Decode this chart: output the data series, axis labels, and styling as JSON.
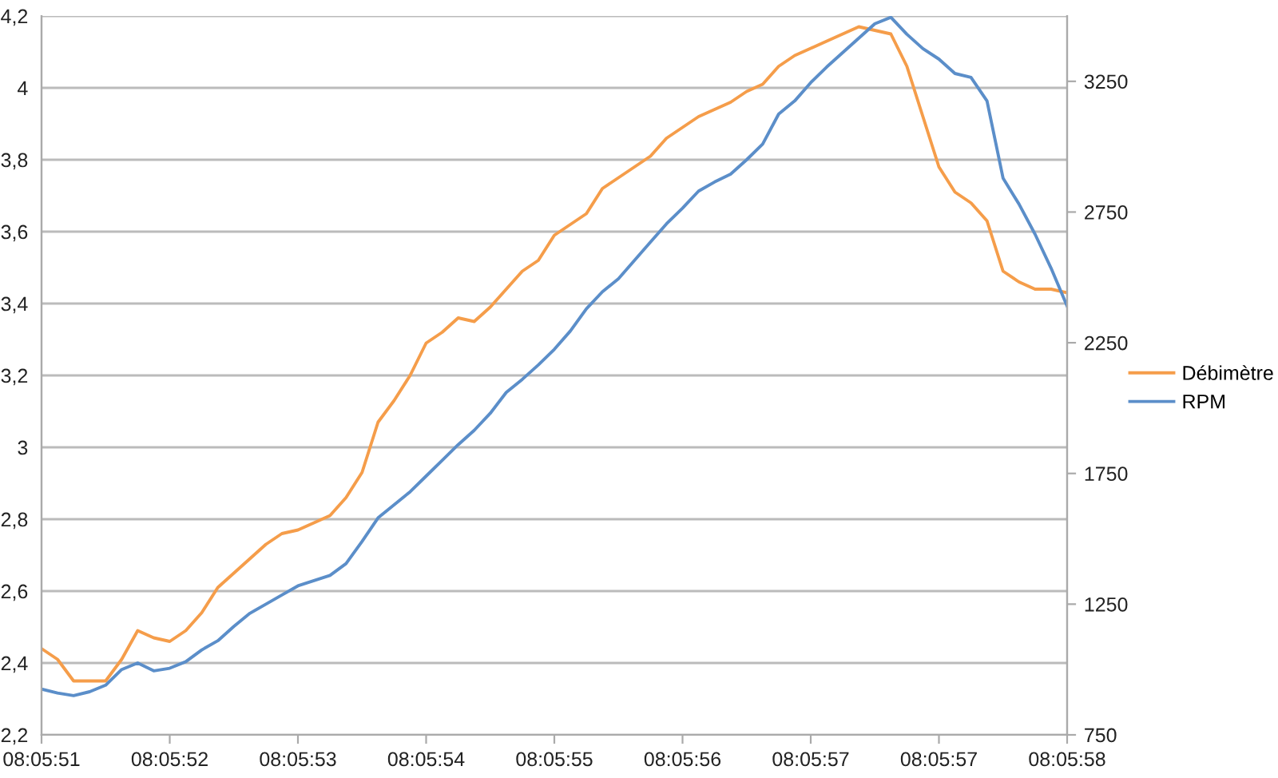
{
  "chart_data": {
    "type": "line",
    "categories": [
      "08:05:51",
      null,
      null,
      null,
      null,
      null,
      null,
      null,
      "08:05:52",
      null,
      null,
      null,
      null,
      null,
      null,
      null,
      "08:05:53",
      null,
      null,
      null,
      null,
      null,
      null,
      null,
      "08:05:54",
      null,
      null,
      null,
      null,
      null,
      null,
      null,
      "08:05:55",
      null,
      null,
      null,
      null,
      null,
      null,
      null,
      "08:05:56",
      null,
      null,
      null,
      null,
      null,
      null,
      null,
      "08:05:57",
      null,
      null,
      null,
      null,
      null,
      null,
      null,
      "08:05:57",
      null,
      null,
      null,
      null,
      null,
      null,
      null,
      "08:05:58"
    ],
    "series": [
      {
        "name": "Débimètre",
        "color": "#f59d4a",
        "values": [
          2.44,
          2.41,
          2.35,
          2.35,
          2.35,
          2.41,
          2.49,
          2.47,
          2.46,
          2.49,
          2.54,
          2.61,
          2.65,
          2.69,
          2.73,
          2.76,
          2.77,
          2.79,
          2.81,
          2.86,
          2.93,
          3.07,
          3.13,
          3.2,
          3.29,
          3.32,
          3.36,
          3.35,
          3.39,
          3.44,
          3.49,
          3.52,
          3.59,
          3.62,
          3.65,
          3.72,
          3.75,
          3.78,
          3.81,
          3.86,
          3.89,
          3.92,
          3.94,
          3.96,
          3.99,
          4.01,
          4.06,
          4.09,
          4.11,
          4.13,
          4.15,
          4.17,
          4.16,
          4.15,
          4.06,
          3.92,
          3.78,
          3.71,
          3.68,
          3.63,
          3.49,
          3.46,
          3.44,
          3.44,
          3.43
        ]
      },
      {
        "name": "RPM",
        "color": "#5b8ec9",
        "axis": "y2",
        "values": [
          925,
          910,
          900,
          915,
          940,
          1000,
          1025,
          995,
          1005,
          1030,
          1075,
          1110,
          1165,
          1215,
          1250,
          1285,
          1320,
          1340,
          1360,
          1405,
          1490,
          1580,
          1630,
          1680,
          1740,
          1800,
          1860,
          1915,
          1980,
          2060,
          2110,
          2165,
          2225,
          2295,
          2380,
          2445,
          2495,
          2565,
          2635,
          2705,
          2765,
          2830,
          2865,
          2895,
          2950,
          3010,
          3125,
          3175,
          3245,
          3305,
          3360,
          3415,
          3470,
          3495,
          3430,
          3375,
          3335,
          3280,
          3265,
          3175,
          2880,
          2780,
          2665,
          2535,
          2390
        ]
      }
    ],
    "ylim": [
      2.2,
      4.2
    ],
    "yticks": [
      {
        "value": 2.2,
        "label": "2,2"
      },
      {
        "value": 2.4,
        "label": "2,4"
      },
      {
        "value": 2.6,
        "label": "2,6"
      },
      {
        "value": 2.8,
        "label": "2,8"
      },
      3,
      {
        "value": 3.2,
        "label": "3,2"
      },
      {
        "value": 3.4,
        "label": "3,4"
      },
      {
        "value": 3.6,
        "label": "3,6"
      },
      {
        "value": 3.8,
        "label": "3,8"
      },
      4,
      {
        "value": 4.2,
        "label": "4,2"
      }
    ],
    "y2lim": [
      750,
      3500
    ],
    "y2ticks": [
      750,
      1250,
      1750,
      2250,
      2750,
      3250
    ],
    "grid": "y",
    "legend": "right",
    "marker": "none",
    "line_style": "solid"
  }
}
